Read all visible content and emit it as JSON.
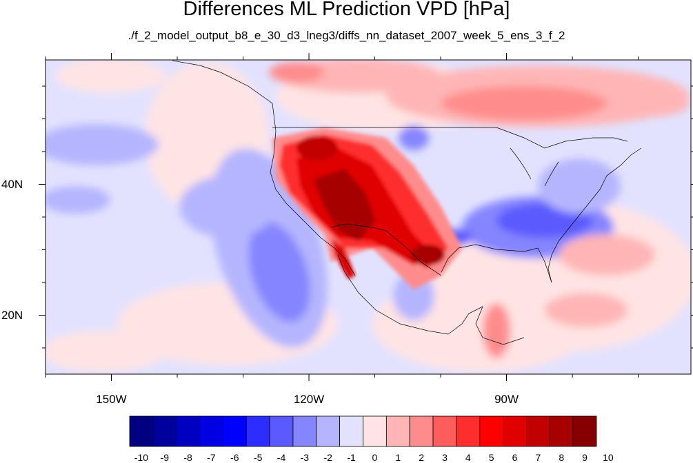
{
  "title": "Differences ML Prediction VPD [hPa]",
  "subtitle": "./f_2_model_output_b8_e_30_d3_lneg3/diffs_nn_dataset_2007_week_5_ens_3_f_2",
  "map": {
    "projection": "cylindrical equidistant",
    "lon_range": [
      -160,
      -62
    ],
    "lat_range": [
      11,
      59
    ],
    "lon_ticks": [
      {
        "value": -150,
        "label": "150W"
      },
      {
        "value": -120,
        "label": "120W"
      },
      {
        "value": -90,
        "label": "90W"
      }
    ],
    "lat_ticks": [
      {
        "value": 40,
        "label": "40N"
      },
      {
        "value": 20,
        "label": "20N"
      }
    ],
    "field": "VPD difference",
    "units": "hPa"
  },
  "colorbar": {
    "levels": [
      "-10",
      "-9",
      "-8",
      "-7",
      "-6",
      "-5",
      "-4",
      "-3",
      "-2",
      "-1",
      "0",
      "1",
      "2",
      "3",
      "4",
      "5",
      "6",
      "7",
      "8",
      "9",
      "10"
    ],
    "colors": [
      "#000080",
      "#00009d",
      "#0000c0",
      "#0000e0",
      "#0000ff",
      "#2d2dff",
      "#5a5aff",
      "#8585ff",
      "#b5b5ff",
      "#e2e2ff",
      "#ffe4e4",
      "#ffb5b5",
      "#ff8c8c",
      "#ff5c5c",
      "#ff2e2e",
      "#ff0000",
      "#e00000",
      "#c20000",
      "#a60000",
      "#870000"
    ]
  }
}
